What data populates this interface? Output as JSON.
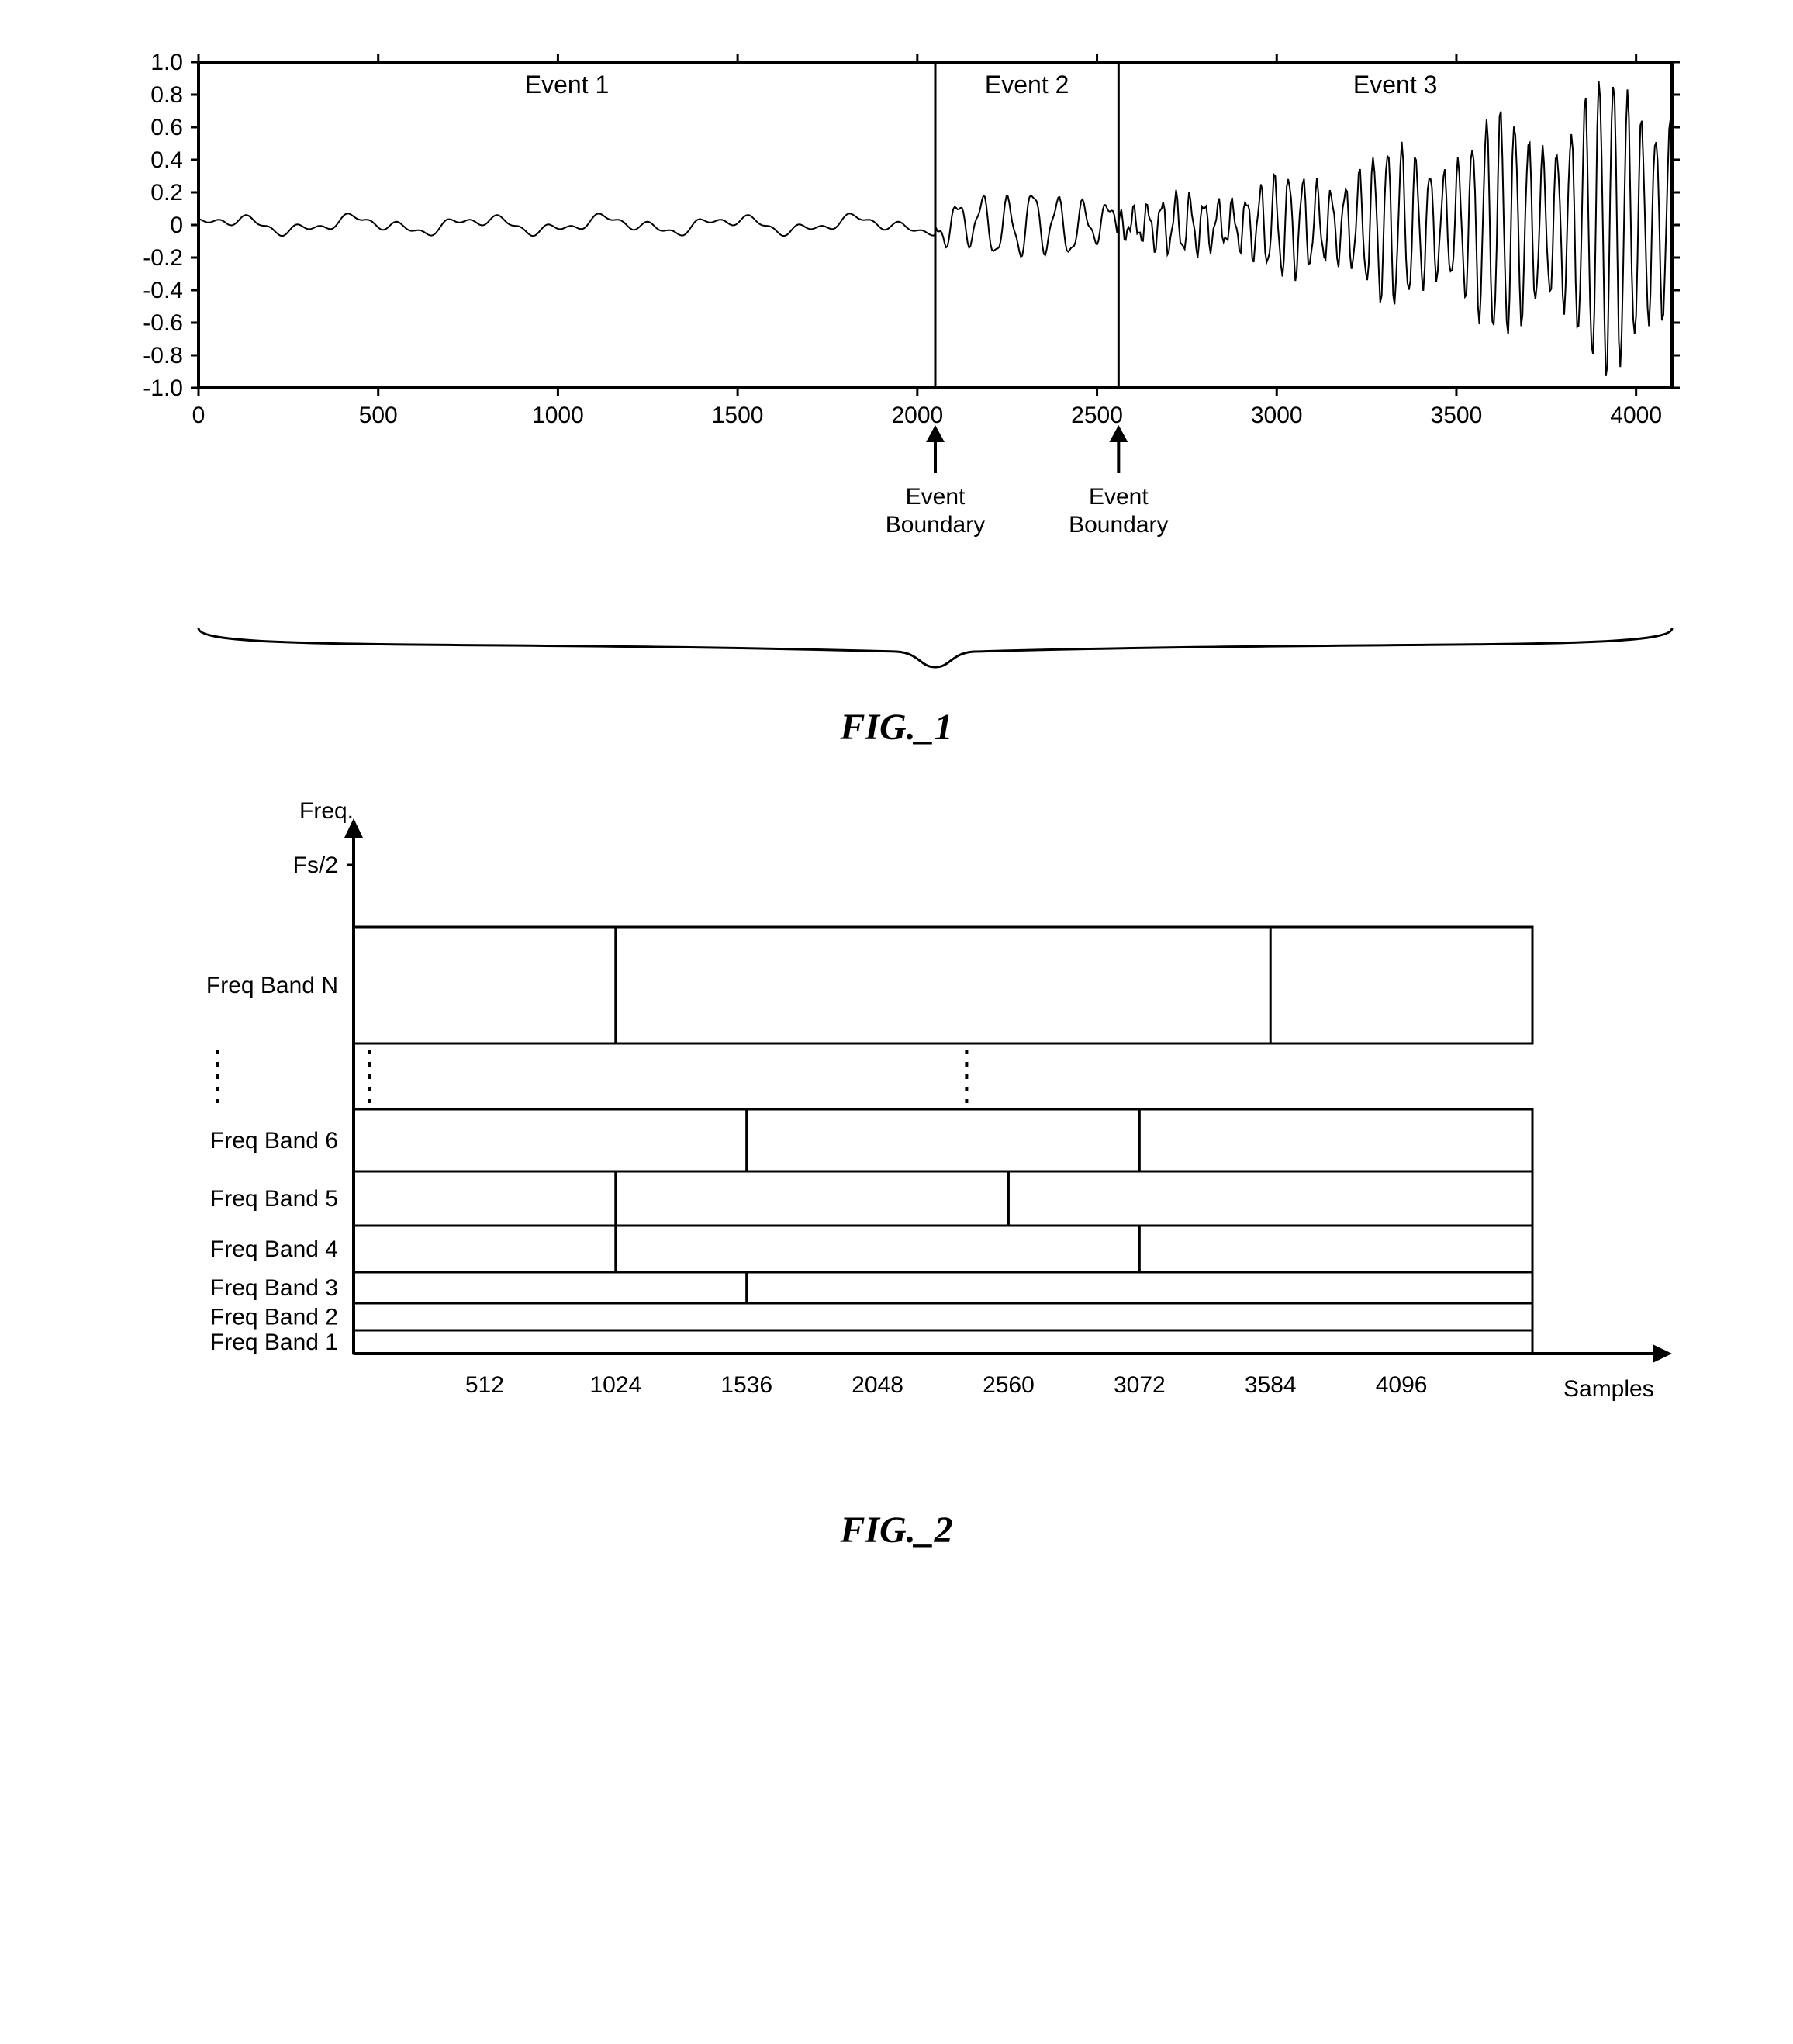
{
  "fig1": {
    "type": "line",
    "title": "FIG._1",
    "event_labels": [
      "Event 1",
      "Event 2",
      "Event 3"
    ],
    "event_boundaries_x": [
      2050,
      2560
    ],
    "boundary_label": "Event\nBoundary",
    "x_ticks": [
      0,
      500,
      1000,
      1500,
      2000,
      2500,
      3000,
      3500,
      4000
    ],
    "y_ticks": [
      -1.0,
      -0.8,
      -0.6,
      -0.4,
      -0.2,
      0,
      0.2,
      0.4,
      0.6,
      0.8,
      1.0
    ],
    "xlim": [
      0,
      4100
    ],
    "ylim": [
      -1.0,
      1.0
    ],
    "line_color": "#000000",
    "background_color": "#ffffff",
    "axis_color": "#000000",
    "axis_font_size": 30,
    "event_font_size": 32,
    "stroke_width": 2
  },
  "fig2": {
    "type": "segmented-bands",
    "title": "FIG._2",
    "y_axis_label": "Freq.",
    "y_top_label": "Fs/2",
    "x_axis_label": "Samples",
    "x_ticks": [
      512,
      1024,
      1536,
      2048,
      2560,
      3072,
      3584,
      4096
    ],
    "band_labels": [
      "Freq Band N",
      "Freq Band 6",
      "Freq Band 5",
      "Freq Band 4",
      "Freq Band 3",
      "Freq Band 2",
      "Freq Band 1"
    ],
    "band_heights": {
      "N": 150,
      "6": 80,
      "5": 70,
      "4": 60,
      "3": 40,
      "2": 35,
      "1": 30
    },
    "band_segments": {
      "N": [
        0,
        1024,
        3584,
        4608
      ],
      "6": [
        0,
        1536,
        3072,
        4608
      ],
      "5": [
        0,
        1024,
        2560,
        4608
      ],
      "4": [
        0,
        1024,
        3072,
        4608
      ],
      "3": [
        0,
        1536,
        4608
      ],
      "2": [
        0,
        4608
      ],
      "1": [
        0,
        4608
      ]
    },
    "gap_between_N_and_6": 85,
    "xlim": [
      0,
      4608
    ],
    "line_color": "#000000",
    "background_color": "#ffffff",
    "stroke_width": 3,
    "label_font_size": 30
  }
}
